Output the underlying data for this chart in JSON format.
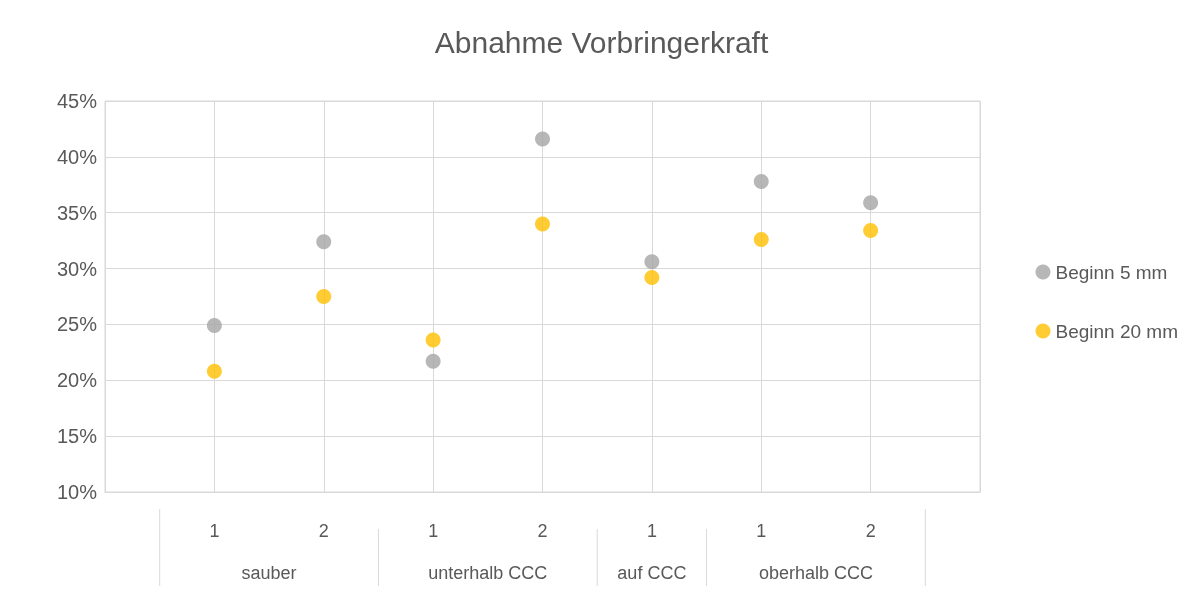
{
  "chart_data": {
    "type": "scatter",
    "title": "Abnahme Vorbringerkraft",
    "categories": [
      "1",
      "2",
      "1",
      "2",
      "1",
      "1",
      "2"
    ],
    "annotations": [
      "sauber",
      "unterhalb CCC",
      "auf CCC",
      "oberhalb CCC"
    ],
    "series": [
      {
        "name": "Beginn 5 mm",
        "color": "#a5a5a5",
        "values": [
          24.9,
          32.4,
          21.7,
          41.6,
          30.6,
          37.8,
          35.9
        ]
      },
      {
        "name": "Beginn 20 mm",
        "color": "#ffc000",
        "values": [
          20.8,
          27.5,
          23.6,
          34.0,
          29.2,
          32.6,
          33.4
        ]
      }
    ],
    "ylim": [
      10,
      45
    ],
    "yticks": [
      {
        "value": 10,
        "label": "10%"
      },
      {
        "value": 15,
        "label": "15%"
      },
      {
        "value": 20,
        "label": "20%"
      },
      {
        "value": 25,
        "label": "25%"
      },
      {
        "value": 30,
        "label": "30%"
      },
      {
        "value": 35,
        "label": "35%"
      },
      {
        "value": 40,
        "label": "40%"
      },
      {
        "value": 45,
        "label": "45%"
      }
    ],
    "grid": true,
    "legend": "right",
    "marker": "circle"
  }
}
